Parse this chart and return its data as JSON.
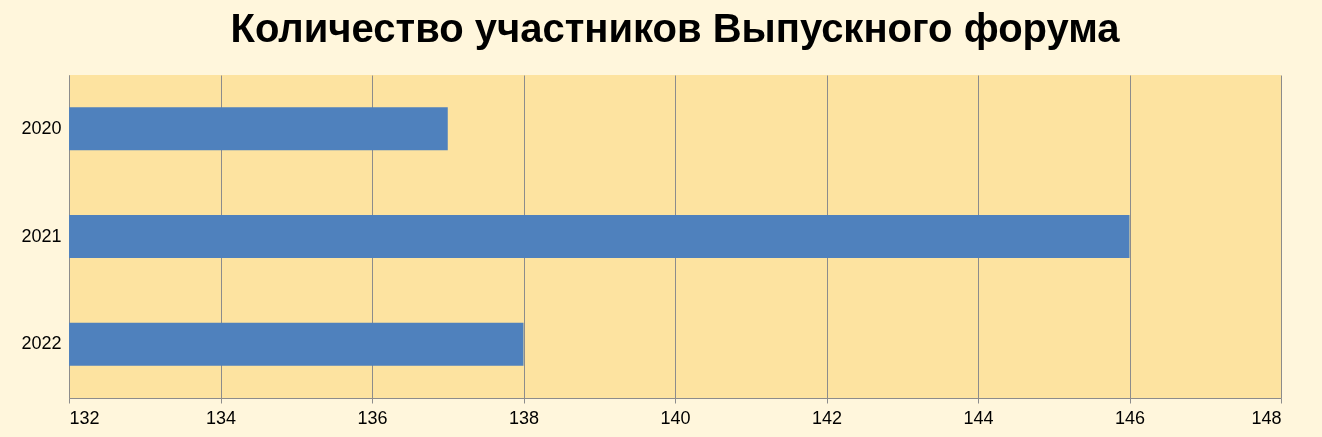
{
  "chart_data": {
    "type": "bar",
    "orientation": "horizontal",
    "title": "Количество участников  Выпускного форума",
    "categories": [
      "2020",
      "2021",
      "2022"
    ],
    "values": [
      137,
      146,
      138
    ],
    "color": "#4f81bd",
    "xlim": [
      132,
      148
    ],
    "xticks": [
      132,
      134,
      136,
      138,
      140,
      142,
      144,
      146,
      148
    ],
    "grid": "x"
  }
}
